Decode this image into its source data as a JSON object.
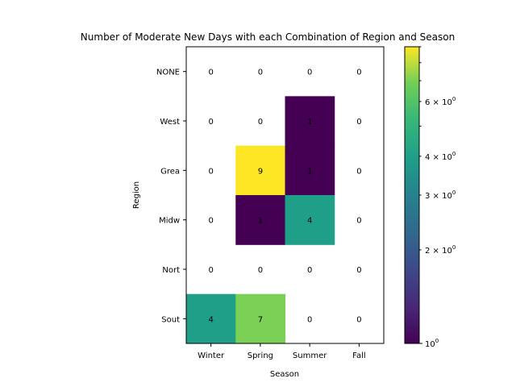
{
  "chart_data": {
    "type": "heatmap",
    "title": "Number of Moderate New Days with each Combination of Region and Season",
    "xlabel": "Season",
    "ylabel": "Region",
    "x_categories": [
      "Winter",
      "Spring",
      "Summer",
      "Fall"
    ],
    "y_categories": [
      "NONE",
      "West",
      "Grea",
      "Midw",
      "Nort",
      "Sout"
    ],
    "values": [
      [
        0,
        0,
        0,
        0
      ],
      [
        0,
        0,
        1,
        0
      ],
      [
        0,
        9,
        1,
        0
      ],
      [
        0,
        1,
        4,
        0
      ],
      [
        0,
        0,
        0,
        0
      ],
      [
        4,
        7,
        0,
        0
      ]
    ],
    "color_scale": "log",
    "colormap": "viridis",
    "colorbar_range": [
      1,
      9
    ],
    "colorbar_ticks": [
      {
        "value": 1,
        "base": "10",
        "exp": "0",
        "mult": ""
      },
      {
        "value": 2,
        "base": "10",
        "exp": "0",
        "mult": "2 × "
      },
      {
        "value": 3,
        "base": "10",
        "exp": "0",
        "mult": "3 × "
      },
      {
        "value": 4,
        "base": "10",
        "exp": "0",
        "mult": "4 × "
      },
      {
        "value": 6,
        "base": "10",
        "exp": "0",
        "mult": "6 × "
      }
    ],
    "zero_cells_masked": true
  }
}
